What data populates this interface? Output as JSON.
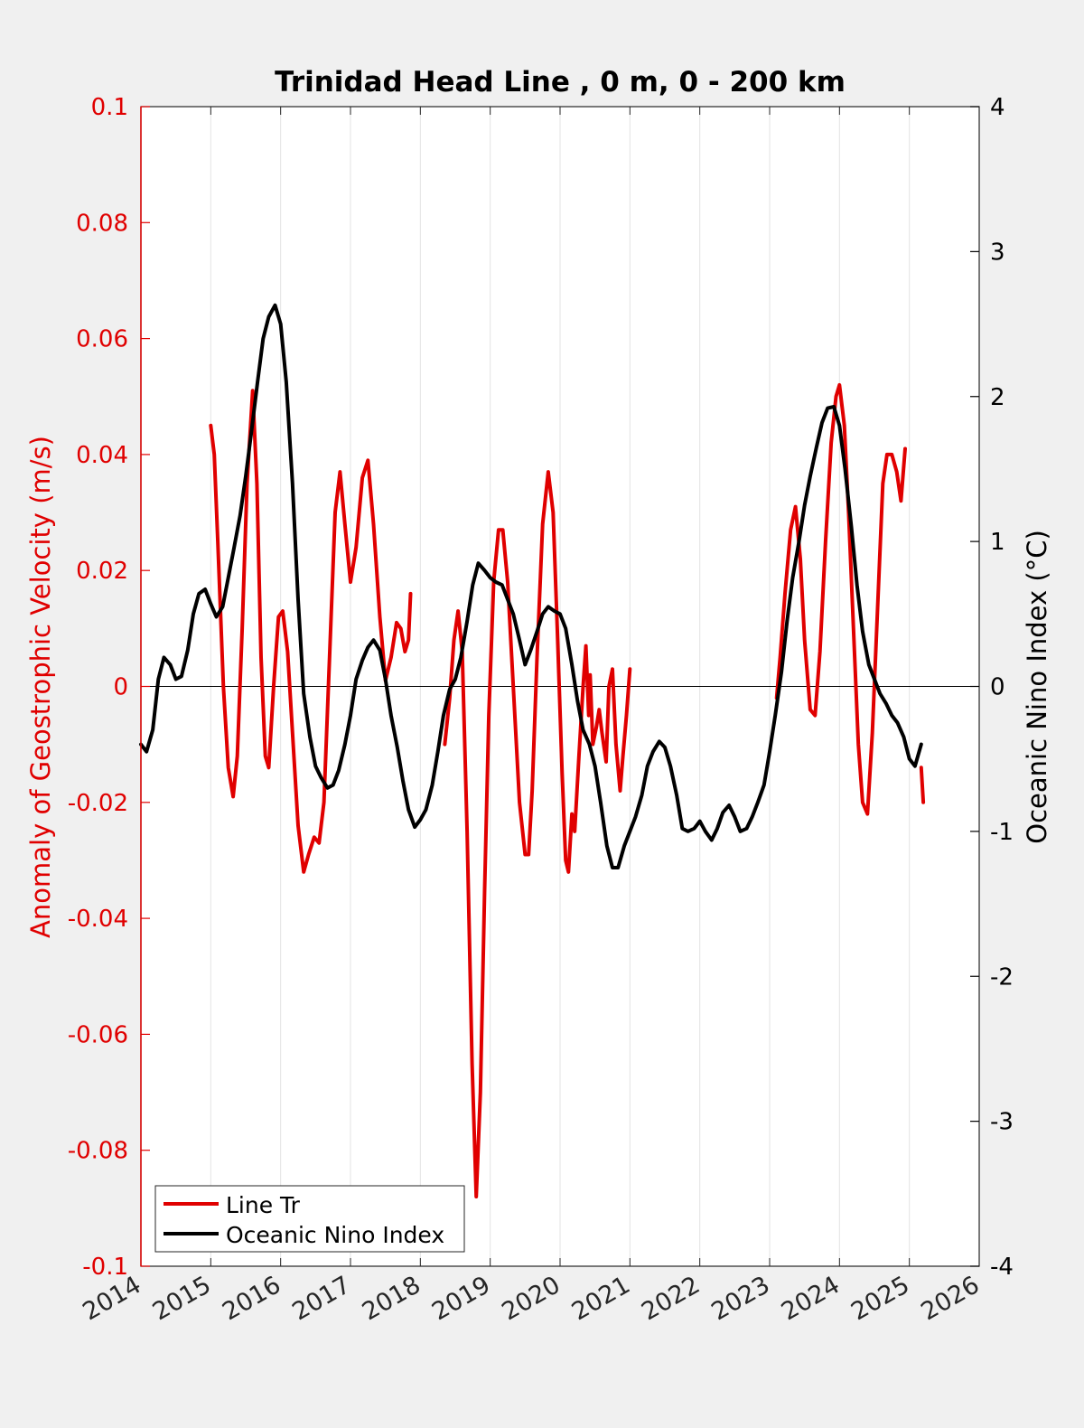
{
  "chart_data": {
    "type": "line",
    "title": "Trinidad Head Line , 0 m, 0 - 200 km",
    "xlabel": "",
    "ylabel_left": "Anomaly of Geostrophic Velocity (m/s)",
    "ylabel_right": "Oceanic Nino Index (°C)",
    "xlim": [
      2014,
      2026
    ],
    "ylim_left": [
      -0.1,
      0.1
    ],
    "ylim_right": [
      -4,
      4
    ],
    "x_ticks": [
      "2014",
      "2015",
      "2016",
      "2017",
      "2018",
      "2019",
      "2020",
      "2021",
      "2022",
      "2023",
      "2024",
      "2025",
      "2026"
    ],
    "y_left_ticks": [
      "-0.1",
      "-0.08",
      "-0.06",
      "-0.04",
      "-0.02",
      "0",
      "0.02",
      "0.04",
      "0.06",
      "0.08",
      "0.1"
    ],
    "y_right_ticks": [
      "-4",
      "-3",
      "-2",
      "-1",
      "0",
      "1",
      "2",
      "3",
      "4"
    ],
    "grid": "vertical",
    "legend_position": "bottom-left",
    "colors": {
      "line_tr": "#e00000",
      "oni": "#000000",
      "left_axis": "#e00000",
      "right_axis": "#000000"
    },
    "series": [
      {
        "name": "Line Tr",
        "axis": "left",
        "segments": [
          [
            [
              2015.0,
              0.045
            ],
            [
              2015.05,
              0.04
            ],
            [
              2015.1,
              0.025
            ],
            [
              2015.18,
              0.0
            ],
            [
              2015.25,
              -0.014
            ],
            [
              2015.32,
              -0.019
            ],
            [
              2015.38,
              -0.012
            ],
            [
              2015.45,
              0.01
            ],
            [
              2015.52,
              0.035
            ],
            [
              2015.6,
              0.051
            ],
            [
              2015.66,
              0.035
            ],
            [
              2015.72,
              0.005
            ],
            [
              2015.78,
              -0.012
            ],
            [
              2015.83,
              -0.014
            ],
            [
              2015.9,
              0.0
            ],
            [
              2015.97,
              0.012
            ],
            [
              2016.03,
              0.013
            ],
            [
              2016.1,
              0.006
            ],
            [
              2016.17,
              -0.008
            ],
            [
              2016.25,
              -0.024
            ],
            [
              2016.33,
              -0.032
            ],
            [
              2016.4,
              -0.029
            ],
            [
              2016.48,
              -0.026
            ],
            [
              2016.55,
              -0.027
            ],
            [
              2016.62,
              -0.02
            ],
            [
              2016.7,
              0.005
            ],
            [
              2016.78,
              0.03
            ],
            [
              2016.85,
              0.037
            ],
            [
              2016.92,
              0.028
            ],
            [
              2017.0,
              0.018
            ],
            [
              2017.08,
              0.024
            ],
            [
              2017.17,
              0.036
            ],
            [
              2017.25,
              0.039
            ],
            [
              2017.33,
              0.028
            ],
            [
              2017.42,
              0.012
            ],
            [
              2017.5,
              0.001
            ],
            [
              2017.58,
              0.005
            ],
            [
              2017.66,
              0.011
            ],
            [
              2017.72,
              0.01
            ],
            [
              2017.78,
              0.006
            ],
            [
              2017.83,
              0.008
            ],
            [
              2017.86,
              0.016
            ]
          ],
          [
            [
              2018.35,
              -0.01
            ],
            [
              2018.42,
              -0.002
            ],
            [
              2018.48,
              0.008
            ],
            [
              2018.54,
              0.013
            ],
            [
              2018.6,
              0.006
            ],
            [
              2018.67,
              -0.025
            ],
            [
              2018.74,
              -0.065
            ],
            [
              2018.8,
              -0.088
            ],
            [
              2018.86,
              -0.07
            ],
            [
              2018.92,
              -0.035
            ],
            [
              2018.98,
              -0.005
            ],
            [
              2019.05,
              0.018
            ],
            [
              2019.12,
              0.027
            ],
            [
              2019.18,
              0.027
            ],
            [
              2019.25,
              0.018
            ],
            [
              2019.33,
              0.0
            ],
            [
              2019.42,
              -0.02
            ],
            [
              2019.5,
              -0.029
            ],
            [
              2019.55,
              -0.029
            ],
            [
              2019.6,
              -0.018
            ],
            [
              2019.67,
              0.005
            ],
            [
              2019.75,
              0.028
            ],
            [
              2019.83,
              0.037
            ],
            [
              2019.9,
              0.03
            ],
            [
              2019.96,
              0.01
            ],
            [
              2020.03,
              -0.015
            ],
            [
              2020.08,
              -0.03
            ],
            [
              2020.12,
              -0.032
            ],
            [
              2020.17,
              -0.022
            ],
            [
              2020.21,
              -0.025
            ],
            [
              2020.27,
              -0.012
            ],
            [
              2020.33,
              0.0
            ],
            [
              2020.37,
              0.007
            ],
            [
              2020.41,
              -0.005
            ],
            [
              2020.43,
              0.002
            ],
            [
              2020.47,
              -0.01
            ],
            [
              2020.52,
              -0.007
            ],
            [
              2020.56,
              -0.004
            ],
            [
              2020.6,
              -0.008
            ],
            [
              2020.66,
              -0.013
            ],
            [
              2020.7,
              0.0
            ],
            [
              2020.75,
              0.003
            ],
            [
              2020.8,
              -0.01
            ],
            [
              2020.86,
              -0.018
            ],
            [
              2020.9,
              -0.012
            ],
            [
              2020.95,
              -0.005
            ],
            [
              2021.0,
              0.003
            ]
          ],
          [
            [
              2023.1,
              -0.002
            ],
            [
              2023.15,
              0.005
            ],
            [
              2023.22,
              0.016
            ],
            [
              2023.3,
              0.027
            ],
            [
              2023.37,
              0.031
            ],
            [
              2023.44,
              0.022
            ],
            [
              2023.5,
              0.008
            ],
            [
              2023.58,
              -0.004
            ],
            [
              2023.65,
              -0.005
            ],
            [
              2023.72,
              0.006
            ],
            [
              2023.8,
              0.025
            ],
            [
              2023.88,
              0.042
            ],
            [
              2023.95,
              0.05
            ],
            [
              2024.0,
              0.052
            ],
            [
              2024.07,
              0.045
            ],
            [
              2024.13,
              0.03
            ],
            [
              2024.2,
              0.01
            ],
            [
              2024.27,
              -0.01
            ],
            [
              2024.33,
              -0.02
            ],
            [
              2024.4,
              -0.022
            ],
            [
              2024.47,
              -0.008
            ],
            [
              2024.55,
              0.015
            ],
            [
              2024.62,
              0.035
            ],
            [
              2024.68,
              0.04
            ],
            [
              2024.75,
              0.04
            ],
            [
              2024.82,
              0.037
            ],
            [
              2024.88,
              0.032
            ],
            [
              2024.94,
              0.041
            ]
          ],
          [
            [
              2025.17,
              -0.014
            ],
            [
              2025.2,
              -0.02
            ]
          ]
        ]
      },
      {
        "name": "Oceanic Nino Index",
        "axis": "right",
        "segments": [
          [
            [
              2014.0,
              -0.4
            ],
            [
              2014.08,
              -0.45
            ],
            [
              2014.17,
              -0.3
            ],
            [
              2014.25,
              0.05
            ],
            [
              2014.33,
              0.2
            ],
            [
              2014.42,
              0.15
            ],
            [
              2014.5,
              0.05
            ],
            [
              2014.58,
              0.07
            ],
            [
              2014.67,
              0.25
            ],
            [
              2014.75,
              0.5
            ],
            [
              2014.83,
              0.64
            ],
            [
              2014.92,
              0.67
            ],
            [
              2015.0,
              0.57
            ],
            [
              2015.08,
              0.48
            ],
            [
              2015.17,
              0.55
            ],
            [
              2015.25,
              0.75
            ],
            [
              2015.33,
              0.95
            ],
            [
              2015.42,
              1.18
            ],
            [
              2015.5,
              1.45
            ],
            [
              2015.58,
              1.75
            ],
            [
              2015.67,
              2.1
            ],
            [
              2015.75,
              2.4
            ],
            [
              2015.83,
              2.55
            ],
            [
              2015.92,
              2.63
            ],
            [
              2016.0,
              2.5
            ],
            [
              2016.08,
              2.1
            ],
            [
              2016.17,
              1.4
            ],
            [
              2016.25,
              0.6
            ],
            [
              2016.33,
              -0.05
            ],
            [
              2016.42,
              -0.35
            ],
            [
              2016.5,
              -0.55
            ],
            [
              2016.58,
              -0.63
            ],
            [
              2016.67,
              -0.7
            ],
            [
              2016.75,
              -0.68
            ],
            [
              2016.83,
              -0.58
            ],
            [
              2016.92,
              -0.4
            ],
            [
              2017.0,
              -0.2
            ],
            [
              2017.08,
              0.05
            ],
            [
              2017.17,
              0.18
            ],
            [
              2017.25,
              0.27
            ],
            [
              2017.33,
              0.32
            ],
            [
              2017.42,
              0.25
            ],
            [
              2017.5,
              0.05
            ],
            [
              2017.58,
              -0.2
            ],
            [
              2017.67,
              -0.42
            ],
            [
              2017.75,
              -0.65
            ],
            [
              2017.83,
              -0.85
            ],
            [
              2017.92,
              -0.97
            ],
            [
              2018.0,
              -0.92
            ],
            [
              2018.08,
              -0.85
            ],
            [
              2018.17,
              -0.68
            ],
            [
              2018.25,
              -0.45
            ],
            [
              2018.33,
              -0.2
            ],
            [
              2018.42,
              -0.02
            ],
            [
              2018.5,
              0.05
            ],
            [
              2018.58,
              0.2
            ],
            [
              2018.67,
              0.45
            ],
            [
              2018.75,
              0.7
            ],
            [
              2018.83,
              0.85
            ],
            [
              2018.92,
              0.8
            ],
            [
              2019.0,
              0.75
            ],
            [
              2019.08,
              0.72
            ],
            [
              2019.17,
              0.7
            ],
            [
              2019.25,
              0.6
            ],
            [
              2019.33,
              0.5
            ],
            [
              2019.42,
              0.32
            ],
            [
              2019.5,
              0.15
            ],
            [
              2019.58,
              0.25
            ],
            [
              2019.67,
              0.38
            ],
            [
              2019.75,
              0.5
            ],
            [
              2019.83,
              0.55
            ],
            [
              2019.92,
              0.52
            ],
            [
              2020.0,
              0.5
            ],
            [
              2020.08,
              0.4
            ],
            [
              2020.17,
              0.15
            ],
            [
              2020.25,
              -0.1
            ],
            [
              2020.33,
              -0.3
            ],
            [
              2020.42,
              -0.4
            ],
            [
              2020.5,
              -0.55
            ],
            [
              2020.58,
              -0.8
            ],
            [
              2020.67,
              -1.1
            ],
            [
              2020.75,
              -1.25
            ],
            [
              2020.83,
              -1.25
            ],
            [
              2020.92,
              -1.1
            ],
            [
              2021.0,
              -1.0
            ],
            [
              2021.08,
              -0.9
            ],
            [
              2021.17,
              -0.75
            ],
            [
              2021.25,
              -0.55
            ],
            [
              2021.33,
              -0.45
            ],
            [
              2021.42,
              -0.38
            ],
            [
              2021.5,
              -0.42
            ],
            [
              2021.58,
              -0.55
            ],
            [
              2021.67,
              -0.75
            ],
            [
              2021.75,
              -0.98
            ],
            [
              2021.83,
              -1.0
            ],
            [
              2021.92,
              -0.98
            ],
            [
              2022.0,
              -0.93
            ],
            [
              2022.08,
              -1.0
            ],
            [
              2022.17,
              -1.06
            ],
            [
              2022.25,
              -0.98
            ],
            [
              2022.33,
              -0.87
            ],
            [
              2022.42,
              -0.82
            ],
            [
              2022.5,
              -0.9
            ],
            [
              2022.58,
              -1.0
            ],
            [
              2022.67,
              -0.98
            ],
            [
              2022.75,
              -0.9
            ],
            [
              2022.83,
              -0.8
            ],
            [
              2022.92,
              -0.68
            ],
            [
              2023.0,
              -0.45
            ],
            [
              2023.08,
              -0.2
            ],
            [
              2023.17,
              0.1
            ],
            [
              2023.25,
              0.45
            ],
            [
              2023.33,
              0.75
            ],
            [
              2023.42,
              1.0
            ],
            [
              2023.5,
              1.25
            ],
            [
              2023.58,
              1.45
            ],
            [
              2023.67,
              1.65
            ],
            [
              2023.75,
              1.82
            ],
            [
              2023.83,
              1.92
            ],
            [
              2023.92,
              1.93
            ],
            [
              2024.0,
              1.8
            ],
            [
              2024.08,
              1.5
            ],
            [
              2024.17,
              1.1
            ],
            [
              2024.25,
              0.7
            ],
            [
              2024.33,
              0.38
            ],
            [
              2024.42,
              0.15
            ],
            [
              2024.5,
              0.05
            ],
            [
              2024.58,
              -0.05
            ],
            [
              2024.67,
              -0.12
            ],
            [
              2024.75,
              -0.2
            ],
            [
              2024.83,
              -0.25
            ],
            [
              2024.92,
              -0.35
            ],
            [
              2025.0,
              -0.5
            ],
            [
              2025.08,
              -0.55
            ],
            [
              2025.17,
              -0.4
            ]
          ]
        ]
      }
    ]
  }
}
